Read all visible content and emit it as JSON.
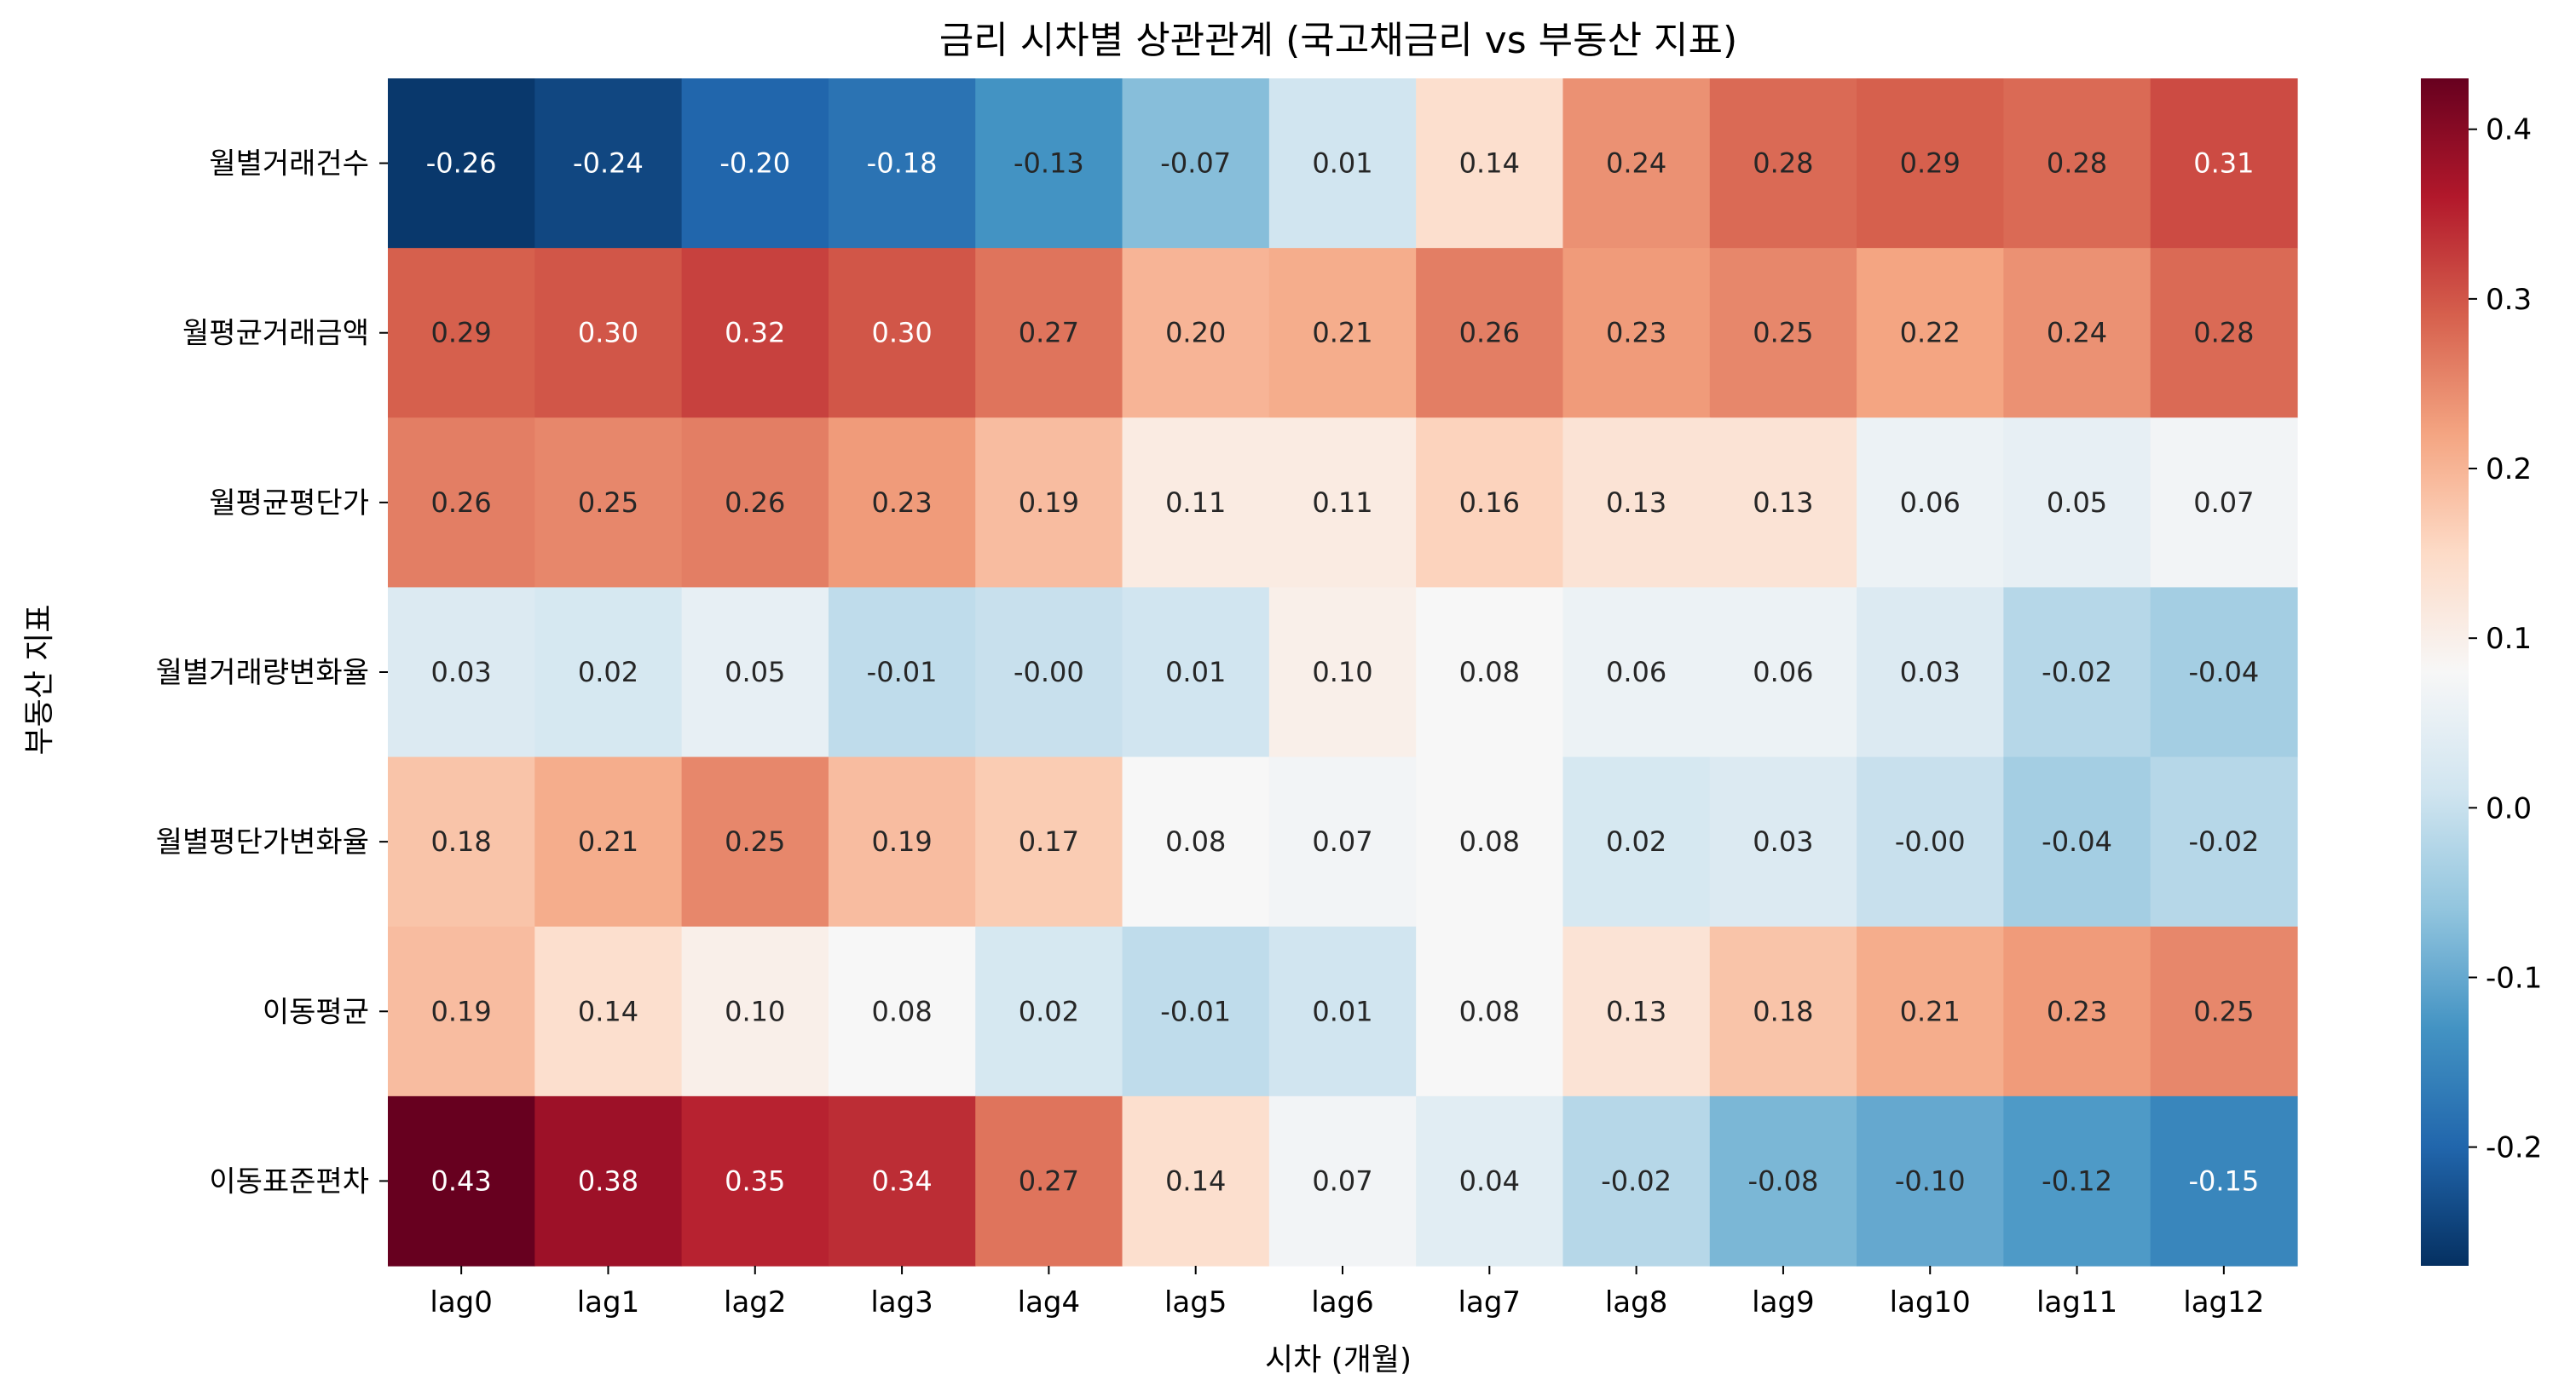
{
  "chart_data": {
    "type": "heatmap",
    "title": "금리 시차별 상관관계 (국고채금리 vs 부동산 지표)",
    "xlabel": "시차 (개월)",
    "ylabel": "부동산 지표",
    "columns": [
      "lag0",
      "lag1",
      "lag2",
      "lag3",
      "lag4",
      "lag5",
      "lag6",
      "lag7",
      "lag8",
      "lag9",
      "lag10",
      "lag11",
      "lag12"
    ],
    "rows": [
      "월별거래건수",
      "월평균거래금액",
      "월평균평단가",
      "월별거래량변화율",
      "월별평단가변화율",
      "이동평균",
      "이동표준편차"
    ],
    "values": [
      [
        -0.26,
        -0.24,
        -0.2,
        -0.18,
        -0.13,
        -0.07,
        0.01,
        0.14,
        0.24,
        0.28,
        0.29,
        0.28,
        0.31
      ],
      [
        0.29,
        0.3,
        0.32,
        0.3,
        0.27,
        0.2,
        0.21,
        0.26,
        0.23,
        0.25,
        0.22,
        0.24,
        0.28
      ],
      [
        0.26,
        0.25,
        0.26,
        0.23,
        0.19,
        0.11,
        0.11,
        0.16,
        0.13,
        0.13,
        0.06,
        0.05,
        0.07
      ],
      [
        0.03,
        0.02,
        0.05,
        -0.01,
        -0.0,
        0.01,
        0.1,
        0.08,
        0.06,
        0.06,
        0.03,
        -0.02,
        -0.04
      ],
      [
        0.18,
        0.21,
        0.25,
        0.19,
        0.17,
        0.08,
        0.07,
        0.08,
        0.02,
        0.03,
        -0.0,
        -0.04,
        -0.02
      ],
      [
        0.19,
        0.14,
        0.1,
        0.08,
        0.02,
        -0.01,
        0.01,
        0.08,
        0.13,
        0.18,
        0.21,
        0.23,
        0.25
      ],
      [
        0.43,
        0.38,
        0.35,
        0.34,
        0.27,
        0.14,
        0.07,
        0.04,
        -0.02,
        -0.08,
        -0.1,
        -0.12,
        -0.15
      ]
    ],
    "cell_labels": [
      [
        "-0.26",
        "-0.24",
        "-0.20",
        "-0.18",
        "-0.13",
        "-0.07",
        "0.01",
        "0.14",
        "0.24",
        "0.28",
        "0.29",
        "0.28",
        "0.31"
      ],
      [
        "0.29",
        "0.30",
        "0.32",
        "0.30",
        "0.27",
        "0.20",
        "0.21",
        "0.26",
        "0.23",
        "0.25",
        "0.22",
        "0.24",
        "0.28"
      ],
      [
        "0.26",
        "0.25",
        "0.26",
        "0.23",
        "0.19",
        "0.11",
        "0.11",
        "0.16",
        "0.13",
        "0.13",
        "0.06",
        "0.05",
        "0.07"
      ],
      [
        "0.03",
        "0.02",
        "0.05",
        "-0.01",
        "-0.00",
        "0.01",
        "0.10",
        "0.08",
        "0.06",
        "0.06",
        "0.03",
        "-0.02",
        "-0.04"
      ],
      [
        "0.18",
        "0.21",
        "0.25",
        "0.19",
        "0.17",
        "0.08",
        "0.07",
        "0.08",
        "0.02",
        "0.03",
        "-0.00",
        "-0.04",
        "-0.02"
      ],
      [
        "0.19",
        "0.14",
        "0.10",
        "0.08",
        "0.02",
        "-0.01",
        "0.01",
        "0.08",
        "0.13",
        "0.18",
        "0.21",
        "0.23",
        "0.25"
      ],
      [
        "0.43",
        "0.38",
        "0.35",
        "0.34",
        "0.27",
        "0.14",
        "0.07",
        "0.04",
        "-0.02",
        "-0.08",
        "-0.10",
        "-0.12",
        "-0.15"
      ]
    ],
    "colormap": "RdBu_r",
    "vmin": -0.27,
    "vmax": 0.43,
    "colorbar": {
      "ticks": [
        0.4,
        0.3,
        0.2,
        0.1,
        0.0,
        -0.1,
        -0.2
      ],
      "tick_labels": [
        "0.4",
        "0.3",
        "0.2",
        "0.1",
        "0.0",
        "-0.1",
        "-0.2"
      ],
      "position": "right"
    },
    "grid": false,
    "legend": "none"
  }
}
